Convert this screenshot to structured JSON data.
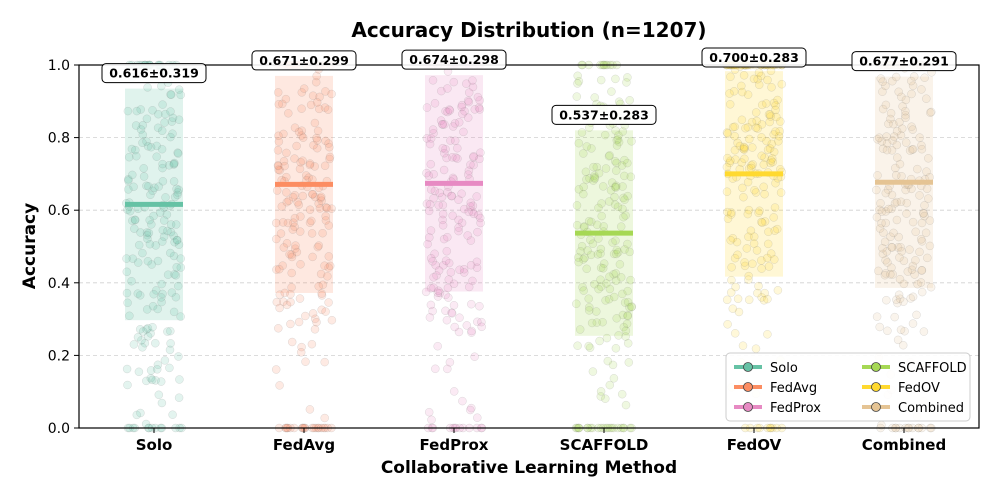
{
  "chart_data": {
    "type": "scatter",
    "title": "Accuracy Distribution (n=1207)",
    "xlabel": "Collaborative Learning Method",
    "ylabel": "Accuracy",
    "ylim": [
      0,
      1.0
    ],
    "yticks": [
      "0.0",
      "0.2",
      "0.4",
      "0.6",
      "0.8",
      "1.0"
    ],
    "grid": "horizontal dashed",
    "legend_position": "lower-right",
    "categories": [
      "Solo",
      "FedAvg",
      "FedProx",
      "SCAFFOLD",
      "FedOV",
      "Combined"
    ],
    "series": [
      {
        "name": "Solo",
        "mean": 0.616,
        "std": 0.319,
        "label": "0.616±0.319",
        "color": "#66c2a5"
      },
      {
        "name": "FedAvg",
        "mean": 0.671,
        "std": 0.299,
        "label": "0.671±0.299",
        "color": "#fc8d62"
      },
      {
        "name": "FedProx",
        "mean": 0.674,
        "std": 0.298,
        "label": "0.674±0.298",
        "color": "#e78ac3"
      },
      {
        "name": "SCAFFOLD",
        "mean": 0.537,
        "std": 0.283,
        "label": "0.537±0.283",
        "color": "#a6d854"
      },
      {
        "name": "FedOV",
        "mean": 0.7,
        "std": 0.283,
        "label": "0.700±0.283",
        "color": "#ffd92f"
      },
      {
        "name": "Combined",
        "mean": 0.677,
        "std": 0.291,
        "label": "0.677±0.291",
        "color": "#e5c494"
      }
    ]
  }
}
